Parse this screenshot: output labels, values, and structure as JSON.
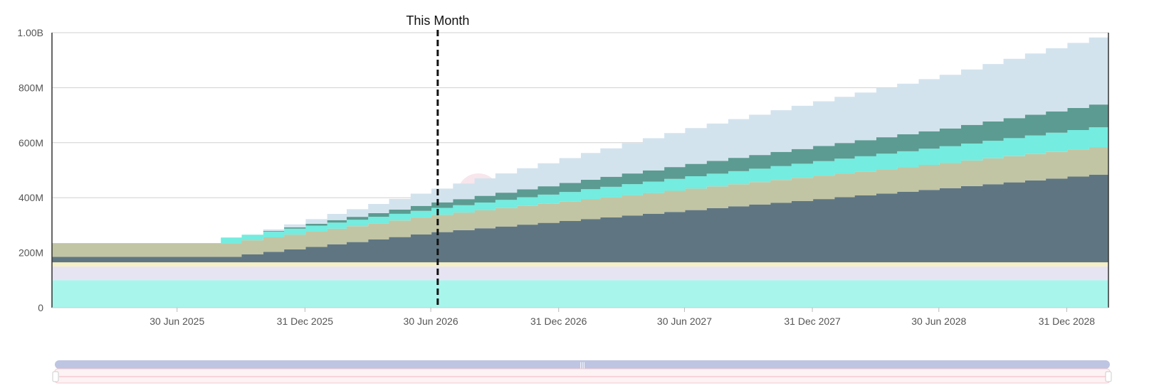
{
  "chart_data": {
    "type": "area",
    "stacked": true,
    "step": true,
    "x_start": "2025-01",
    "x_end": "2029-03",
    "x_ticks": [
      {
        "date": "2025-06-30",
        "label": "30 Jun 2025"
      },
      {
        "date": "2025-12-31",
        "label": "31 Dec 2025"
      },
      {
        "date": "2026-06-30",
        "label": "30 Jun 2026"
      },
      {
        "date": "2026-12-31",
        "label": "31 Dec 2026"
      },
      {
        "date": "2027-06-30",
        "label": "30 Jun 2027"
      },
      {
        "date": "2027-12-31",
        "label": "31 Dec 2027"
      },
      {
        "date": "2028-06-30",
        "label": "30 Jun 2028"
      },
      {
        "date": "2028-12-31",
        "label": "31 Dec 2028"
      }
    ],
    "y_ticks": [
      {
        "value": 0,
        "label": "0"
      },
      {
        "value": 200000000,
        "label": "200M"
      },
      {
        "value": 400000000,
        "label": "400M"
      },
      {
        "value": 600000000,
        "label": "600M"
      },
      {
        "value": 800000000,
        "label": "800M"
      },
      {
        "value": 1000000000,
        "label": "1.00B"
      }
    ],
    "ylim": [
      0,
      1000000000
    ],
    "grid": true,
    "marker": {
      "date": "2026-07-10",
      "label": "This Month",
      "style": "dashed"
    },
    "watermark": "tokenomist",
    "series": [
      {
        "color": "#a8f5ec",
        "points": [
          [
            "2025-01",
            100000000
          ],
          [
            "2029-03",
            100000000
          ]
        ]
      },
      {
        "color": "#e6e4f3",
        "points": [
          [
            "2025-01",
            50000000
          ],
          [
            "2029-03",
            50000000
          ]
        ]
      },
      {
        "color": "#f5efc4",
        "points": [
          [
            "2025-01",
            15000000
          ],
          [
            "2029-03",
            15000000
          ]
        ]
      },
      {
        "color": "#5f7682",
        "points": [
          [
            "2025-01",
            20000000
          ],
          [
            "2025-09",
            20000000
          ],
          [
            "2026-07",
            110000000
          ],
          [
            "2027-07",
            190000000
          ],
          [
            "2028-07",
            270000000
          ],
          [
            "2029-03",
            325000000
          ]
        ]
      },
      {
        "color": "#c2c5a3",
        "points": [
          [
            "2025-01",
            50000000
          ],
          [
            "2025-09",
            50000000
          ],
          [
            "2026-07",
            63000000
          ],
          [
            "2027-07",
            78000000
          ],
          [
            "2028-07",
            92000000
          ],
          [
            "2029-03",
            100000000
          ]
        ]
      },
      {
        "color": "#74ecdf",
        "points": [
          [
            "2025-01",
            0
          ],
          [
            "2025-08",
            0
          ],
          [
            "2025-09",
            20000000
          ],
          [
            "2026-07",
            25000000
          ],
          [
            "2027-07",
            45000000
          ],
          [
            "2028-07",
            60000000
          ],
          [
            "2029-03",
            75000000
          ]
        ]
      },
      {
        "color": "#5c9b91",
        "points": [
          [
            "2025-01",
            0
          ],
          [
            "2025-10",
            0
          ],
          [
            "2026-07",
            20000000
          ],
          [
            "2027-07",
            45000000
          ],
          [
            "2028-07",
            65000000
          ],
          [
            "2029-03",
            85000000
          ]
        ]
      },
      {
        "color": "#d3e3ee",
        "points": [
          [
            "2025-01",
            0
          ],
          [
            "2025-10",
            0
          ],
          [
            "2026-07",
            50000000
          ],
          [
            "2027-07",
            130000000
          ],
          [
            "2028-07",
            195000000
          ],
          [
            "2029-03",
            250000000
          ]
        ]
      }
    ]
  }
}
